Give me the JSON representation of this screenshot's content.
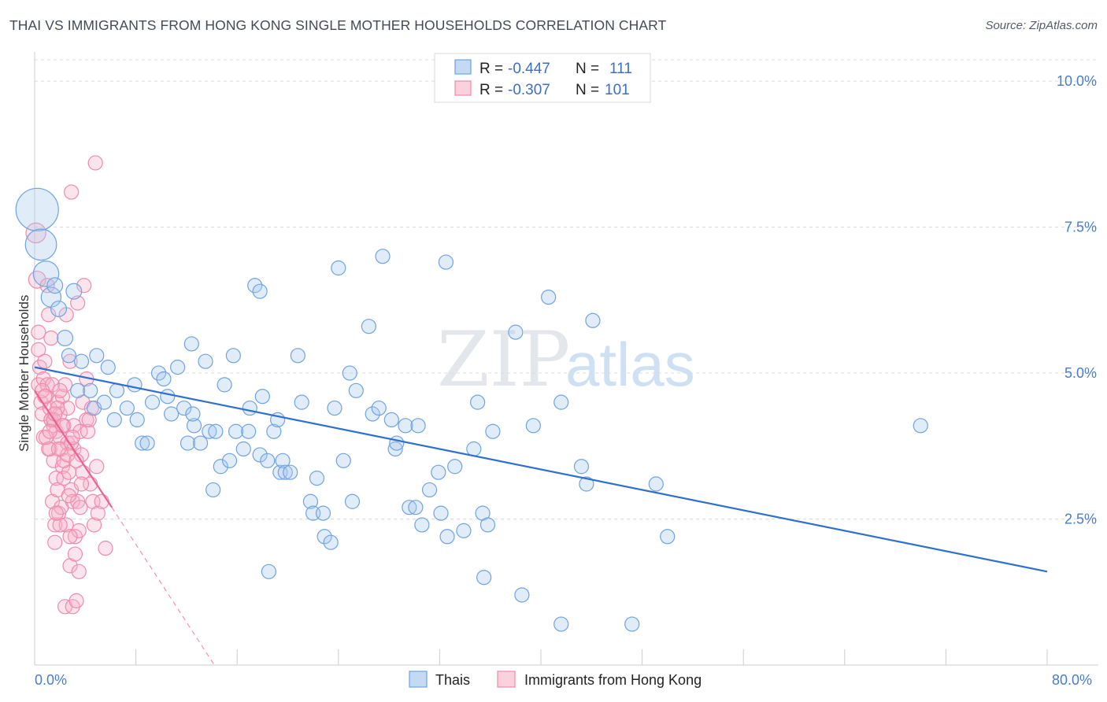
{
  "title": "THAI VS IMMIGRANTS FROM HONG KONG SINGLE MOTHER HOUSEHOLDS CORRELATION CHART",
  "source": "Source: ZipAtlas.com",
  "watermark": {
    "zip": "ZIP",
    "atlas": "atlas"
  },
  "colors": {
    "blue": "#6fa3e0",
    "blue_line": "#2f6fcf",
    "pink": "#f08aab",
    "pink_line": "#e8648f",
    "grid": "#d8dce2",
    "axis_text": "#4a7cc9"
  },
  "legend": {
    "r_label": "R =",
    "n_label": "N =",
    "thai": {
      "r": "-0.447",
      "n": "111"
    },
    "hk": {
      "r": "-0.307",
      "n": "101"
    }
  },
  "bottom_legend": {
    "thai": "Thais",
    "hk": "Immigrants from Hong Kong"
  },
  "chart_data": {
    "type": "scatter",
    "title": "THAI VS IMMIGRANTS FROM HONG KONG SINGLE MOTHER HOUSEHOLDS CORRELATION CHART",
    "xlabel": "",
    "ylabel": "Single Mother Households",
    "xlim": [
      0,
      80
    ],
    "ylim": [
      0,
      10.5
    ],
    "x_tick_labels": {
      "left": "0.0%",
      "right": "80.0%"
    },
    "y_ticks": [
      {
        "value": 2.5,
        "label": "2.5%"
      },
      {
        "value": 5.0,
        "label": "5.0%"
      },
      {
        "value": 7.5,
        "label": "7.5%"
      },
      {
        "value": 10.0,
        "label": "10.0%"
      }
    ],
    "series": [
      {
        "name": "Thais",
        "trend": {
          "x": [
            0,
            80
          ],
          "y": [
            5.1,
            1.6
          ]
        },
        "points": [
          [
            0.2,
            7.8,
            3
          ],
          [
            0.5,
            7.2,
            2.2
          ],
          [
            0.9,
            6.7,
            1.8
          ],
          [
            1.3,
            6.3,
            1.4
          ],
          [
            1.6,
            6.5,
            1.1
          ],
          [
            3.1,
            6.4,
            1.1
          ],
          [
            1.9,
            6.1,
            1.1
          ],
          [
            2.4,
            5.6,
            1.1
          ],
          [
            2.7,
            5.3,
            1
          ],
          [
            3.7,
            5.2,
            1
          ],
          [
            4.9,
            5.3,
            1
          ],
          [
            5.8,
            5.1,
            1
          ],
          [
            3.4,
            4.7,
            1
          ],
          [
            4.4,
            4.7,
            1
          ],
          [
            4.7,
            4.4,
            1
          ],
          [
            5.5,
            4.5,
            1
          ],
          [
            6.5,
            4.7,
            1
          ],
          [
            6.3,
            4.2,
            1
          ],
          [
            7.3,
            4.4,
            1
          ],
          [
            7.9,
            4.8,
            1
          ],
          [
            8.1,
            4.2,
            1
          ],
          [
            8.5,
            3.8,
            1
          ],
          [
            8.9,
            3.8,
            1
          ],
          [
            9.3,
            4.5,
            1
          ],
          [
            9.8,
            5.0,
            1
          ],
          [
            10.2,
            4.9,
            1
          ],
          [
            10.5,
            4.6,
            1
          ],
          [
            10.8,
            4.3,
            1
          ],
          [
            11.3,
            5.1,
            1
          ],
          [
            11.8,
            4.4,
            1
          ],
          [
            12.1,
            3.8,
            1
          ],
          [
            12.4,
            5.5,
            1
          ],
          [
            12.6,
            4.1,
            1
          ],
          [
            12.5,
            4.3,
            1
          ],
          [
            13.1,
            3.8,
            1
          ],
          [
            13.5,
            5.2,
            1
          ],
          [
            13.8,
            4.0,
            1
          ],
          [
            14.3,
            4.0,
            1
          ],
          [
            14.1,
            3.0,
            1
          ],
          [
            14.7,
            3.4,
            1
          ],
          [
            15.0,
            4.8,
            1
          ],
          [
            15.4,
            3.5,
            1
          ],
          [
            15.7,
            5.3,
            1
          ],
          [
            15.9,
            4.0,
            1
          ],
          [
            16.5,
            3.7,
            1
          ],
          [
            17.0,
            4.4,
            1
          ],
          [
            16.9,
            4.0,
            1
          ],
          [
            17.4,
            6.5,
            1
          ],
          [
            17.8,
            6.4,
            1
          ],
          [
            17.8,
            3.6,
            1
          ],
          [
            18.0,
            4.6,
            1
          ],
          [
            18.4,
            3.5,
            1
          ],
          [
            18.5,
            1.6,
            1
          ],
          [
            18.9,
            4.0,
            1
          ],
          [
            19.2,
            4.2,
            1
          ],
          [
            19.4,
            3.3,
            1
          ],
          [
            19.6,
            3.5,
            1
          ],
          [
            19.8,
            3.3,
            1
          ],
          [
            20.2,
            3.3,
            1
          ],
          [
            20.8,
            5.3,
            1
          ],
          [
            21.1,
            4.5,
            1
          ],
          [
            21.8,
            2.8,
            1
          ],
          [
            22.0,
            2.6,
            1
          ],
          [
            22.3,
            3.2,
            1
          ],
          [
            22.8,
            2.6,
            1
          ],
          [
            22.9,
            2.2,
            1
          ],
          [
            23.4,
            2.1,
            1
          ],
          [
            23.7,
            4.4,
            1
          ],
          [
            24.0,
            6.8,
            1
          ],
          [
            24.4,
            3.5,
            1
          ],
          [
            24.9,
            5.0,
            1
          ],
          [
            25.1,
            2.8,
            1
          ],
          [
            25.4,
            4.7,
            1
          ],
          [
            26.4,
            5.8,
            1
          ],
          [
            26.7,
            4.3,
            1
          ],
          [
            27.2,
            4.4,
            1
          ],
          [
            27.5,
            7.0,
            1
          ],
          [
            28.2,
            4.2,
            1
          ],
          [
            28.5,
            3.7,
            1
          ],
          [
            28.6,
            3.8,
            1
          ],
          [
            29.3,
            4.1,
            1
          ],
          [
            29.6,
            2.7,
            1
          ],
          [
            30.1,
            2.7,
            1
          ],
          [
            30.3,
            4.1,
            1
          ],
          [
            30.6,
            2.4,
            1
          ],
          [
            31.2,
            3.0,
            1
          ],
          [
            31.9,
            3.3,
            1
          ],
          [
            32.1,
            2.6,
            1
          ],
          [
            32.6,
            2.2,
            1
          ],
          [
            32.5,
            6.9,
            1
          ],
          [
            33.2,
            3.4,
            1
          ],
          [
            33.9,
            2.3,
            1
          ],
          [
            34.7,
            3.7,
            1
          ],
          [
            35.0,
            4.5,
            1
          ],
          [
            35.4,
            2.6,
            1
          ],
          [
            35.5,
            1.5,
            1
          ],
          [
            35.8,
            2.4,
            1
          ],
          [
            36.2,
            4.0,
            1
          ],
          [
            38.0,
            5.7,
            1
          ],
          [
            38.5,
            1.2,
            1
          ],
          [
            39.4,
            4.1,
            1
          ],
          [
            40.6,
            6.3,
            1
          ],
          [
            41.6,
            4.5,
            1
          ],
          [
            41.6,
            0.7,
            1
          ],
          [
            43.2,
            3.4,
            1
          ],
          [
            43.6,
            3.1,
            1
          ],
          [
            44.1,
            5.9,
            1
          ],
          [
            47.2,
            0.7,
            1
          ],
          [
            50.0,
            2.2,
            1
          ],
          [
            49.1,
            3.1,
            1
          ],
          [
            70.0,
            4.1,
            1
          ]
        ]
      },
      {
        "name": "Immigrants from Hong Kong",
        "trend": {
          "x": [
            0,
            6.1
          ],
          "y": [
            4.7,
            2.7
          ]
        },
        "trend_extension": {
          "x": [
            6.1,
            14.2
          ],
          "y": [
            2.7,
            0
          ]
        },
        "points": [
          [
            0.1,
            7.4,
            1.4
          ],
          [
            0.2,
            6.6,
            1.2
          ],
          [
            0.3,
            5.7,
            1
          ],
          [
            0.3,
            5.4,
            1
          ],
          [
            0.4,
            5.1,
            1
          ],
          [
            0.3,
            4.8,
            1
          ],
          [
            0.5,
            4.5,
            1
          ],
          [
            0.6,
            4.3,
            1
          ],
          [
            0.7,
            4.9,
            1
          ],
          [
            0.7,
            3.9,
            1
          ],
          [
            0.8,
            5.2,
            1
          ],
          [
            0.9,
            4.6,
            1
          ],
          [
            1.0,
            6.5,
            1
          ],
          [
            1.0,
            4.8,
            1
          ],
          [
            1.1,
            6.0,
            1
          ],
          [
            1.2,
            4.4,
            1
          ],
          [
            1.2,
            3.7,
            1
          ],
          [
            1.3,
            4.2,
            1
          ],
          [
            1.3,
            5.6,
            1
          ],
          [
            1.4,
            4.8,
            1
          ],
          [
            1.4,
            2.8,
            1
          ],
          [
            1.5,
            4.1,
            1
          ],
          [
            1.5,
            3.5,
            1
          ],
          [
            1.6,
            2.4,
            1
          ],
          [
            1.6,
            2.1,
            1
          ],
          [
            1.7,
            4.0,
            1
          ],
          [
            1.7,
            3.2,
            1
          ],
          [
            1.8,
            4.5,
            1
          ],
          [
            1.8,
            3.0,
            1
          ],
          [
            1.9,
            2.6,
            1
          ],
          [
            2.0,
            4.3,
            1
          ],
          [
            2.0,
            3.9,
            1
          ],
          [
            2.1,
            3.7,
            1
          ],
          [
            2.1,
            2.7,
            1
          ],
          [
            2.2,
            4.6,
            1
          ],
          [
            2.2,
            3.4,
            1
          ],
          [
            2.3,
            4.1,
            1
          ],
          [
            2.3,
            3.2,
            1
          ],
          [
            2.4,
            1.0,
            1
          ],
          [
            2.5,
            2.4,
            1
          ],
          [
            2.5,
            6.0,
            1
          ],
          [
            2.6,
            4.4,
            1
          ],
          [
            2.6,
            3.8,
            1
          ],
          [
            2.7,
            3.3,
            1
          ],
          [
            2.8,
            1.7,
            1
          ],
          [
            2.8,
            5.2,
            1
          ],
          [
            2.9,
            3.0,
            1
          ],
          [
            3.0,
            2.8,
            1
          ],
          [
            3.0,
            1.0,
            1
          ],
          [
            3.1,
            4.1,
            1
          ],
          [
            3.1,
            3.7,
            1
          ],
          [
            3.2,
            2.2,
            1
          ],
          [
            3.2,
            1.9,
            1
          ],
          [
            3.3,
            1.1,
            1
          ],
          [
            3.4,
            2.8,
            1
          ],
          [
            3.4,
            6.2,
            1
          ],
          [
            3.5,
            1.6,
            1
          ],
          [
            3.6,
            4.0,
            1
          ],
          [
            3.6,
            2.7,
            1
          ],
          [
            3.7,
            3.6,
            1
          ],
          [
            3.8,
            4.5,
            1
          ],
          [
            3.8,
            3.3,
            1
          ],
          [
            3.9,
            6.5,
            1
          ],
          [
            4.1,
            4.9,
            1
          ],
          [
            4.1,
            4.2,
            1
          ],
          [
            4.2,
            4.0,
            1
          ],
          [
            4.4,
            3.1,
            1
          ],
          [
            4.5,
            4.4,
            1
          ],
          [
            4.6,
            2.8,
            1
          ],
          [
            4.7,
            2.4,
            1
          ],
          [
            4.8,
            8.6,
            1
          ],
          [
            4.9,
            3.4,
            1
          ],
          [
            5.0,
            2.6,
            1
          ],
          [
            5.3,
            2.8,
            1
          ],
          [
            5.6,
            2.0,
            1
          ],
          [
            2.9,
            8.1,
            1
          ],
          [
            1.1,
            3.7,
            1
          ],
          [
            0.9,
            3.9,
            1
          ],
          [
            1.3,
            4.2,
            1
          ],
          [
            2.4,
            4.8,
            1
          ],
          [
            2.0,
            4.7,
            1
          ],
          [
            1.8,
            4.4,
            1
          ],
          [
            2.9,
            3.8,
            1
          ],
          [
            0.6,
            4.7,
            1
          ],
          [
            1.5,
            4.2,
            1
          ],
          [
            2.3,
            3.5,
            1
          ],
          [
            2.6,
            3.6,
            1
          ],
          [
            1.9,
            3.7,
            1
          ],
          [
            3.3,
            3.5,
            1
          ],
          [
            2.7,
            2.9,
            1
          ],
          [
            1.2,
            4.0,
            1
          ],
          [
            0.8,
            4.6,
            1
          ],
          [
            1.6,
            4.3,
            1
          ],
          [
            2.2,
            4.1,
            1
          ],
          [
            3.0,
            3.9,
            1
          ],
          [
            2.0,
            2.4,
            1
          ],
          [
            3.5,
            2.3,
            1
          ],
          [
            2.8,
            2.2,
            1
          ],
          [
            1.7,
            2.6,
            1
          ],
          [
            3.7,
            3.1,
            1
          ],
          [
            4.3,
            4.2,
            1
          ]
        ]
      }
    ]
  }
}
